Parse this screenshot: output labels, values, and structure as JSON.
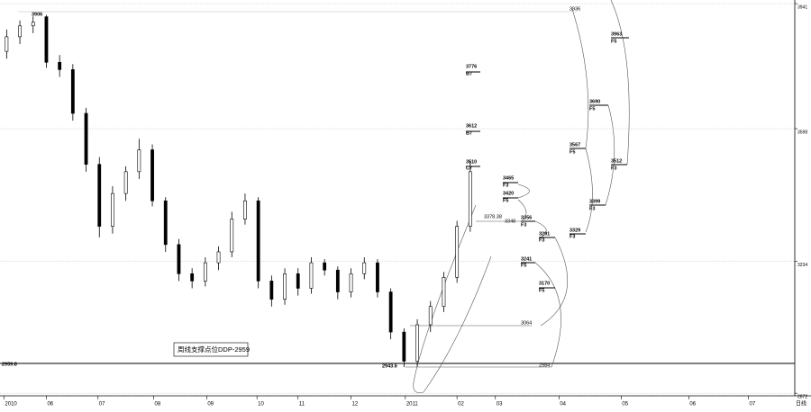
{
  "chart_data": {
    "type": "candlestick",
    "categories": [
      null,
      null,
      null,
      null,
      null,
      null,
      null,
      null,
      null,
      null,
      null,
      null,
      null,
      null,
      null,
      null,
      null,
      null,
      null,
      null,
      null,
      null,
      null,
      null,
      null,
      null,
      null,
      null,
      null,
      null,
      null,
      null,
      null,
      null,
      null,
      null
    ],
    "open": [
      3810,
      3850,
      3880,
      3905,
      3780,
      3760,
      3640,
      3500,
      3330,
      3420,
      3480,
      3540,
      3400,
      3280,
      3200,
      3180,
      3230,
      3260,
      3350,
      3400,
      3180,
      3130,
      3200,
      3160,
      3230,
      3210,
      3150,
      3200,
      3230,
      3150,
      3040,
      2960,
      3060,
      3110,
      3190,
      3330
    ],
    "high": [
      3870,
      3895,
      3906,
      3910,
      3800,
      3775,
      3655,
      3520,
      3440,
      3495,
      3570,
      3555,
      3410,
      3295,
      3215,
      3245,
      3275,
      3370,
      3420,
      3410,
      3195,
      3215,
      3215,
      3245,
      3240,
      3220,
      3215,
      3245,
      3240,
      3160,
      3050,
      3075,
      3125,
      3205,
      3345,
      3510
    ],
    "low": [
      3790,
      3830,
      3860,
      3765,
      3740,
      3620,
      3480,
      3300,
      3310,
      3400,
      3460,
      3385,
      3260,
      3180,
      3160,
      3165,
      3210,
      3245,
      3335,
      3160,
      3110,
      3115,
      3140,
      3145,
      3195,
      3130,
      3135,
      3185,
      3135,
      3020,
      2943.6,
      2945,
      3040,
      3095,
      3175,
      3315
    ],
    "close": [
      3850,
      3880,
      3890,
      3780,
      3760,
      3640,
      3500,
      3330,
      3420,
      3480,
      3540,
      3400,
      3280,
      3200,
      3180,
      3230,
      3260,
      3350,
      3400,
      3180,
      3130,
      3200,
      3160,
      3230,
      3210,
      3150,
      3200,
      3230,
      3150,
      3040,
      2960,
      3060,
      3110,
      3190,
      3330,
      3480
    ],
    "color": "#000000",
    "xlim": [
      -0.5,
      59.5
    ],
    "xticks": [
      {
        "value": -0.2,
        "label": "2010"
      },
      {
        "value": 3.0,
        "label": "06"
      },
      {
        "value": 6.9,
        "label": "07"
      },
      {
        "value": 11.1,
        "label": "08"
      },
      {
        "value": 15.1,
        "label": "09"
      },
      {
        "value": 18.9,
        "label": "10"
      },
      {
        "value": 22.0,
        "label": "11"
      },
      {
        "value": 26.0,
        "label": "12"
      },
      {
        "value": 30.1,
        "label": "2011"
      },
      {
        "value": 34.0,
        "label": "02"
      },
      {
        "value": 36.9,
        "label": "03"
      },
      {
        "value": 41.7,
        "label": "04"
      },
      {
        "value": 46.4,
        "label": "05"
      },
      {
        "value": 51.5,
        "label": "06"
      },
      {
        "value": 56.0,
        "label": "07"
      }
    ],
    "ylim": [
      2865,
      3951
    ],
    "yticks": [
      3941,
      3598,
      3234,
      2872
    ],
    "period_label": "日线",
    "annotations": [
      "3906",
      "3936",
      "3963",
      "F5",
      "3776",
      "B7",
      "3690",
      "F5",
      "3612",
      "B7",
      "3567",
      "F5",
      "3510",
      "C7",
      "3512",
      "F3",
      "3465",
      "F3",
      "3420",
      "F5",
      "3399",
      "F3",
      "3378.38",
      "3356",
      "F3",
      "3348",
      "3329",
      "F3",
      "3291",
      "F3",
      "3241",
      "F5",
      "3170",
      "F5",
      "3064",
      "2984",
      "2943.6",
      "2959.8"
    ],
    "note": "周线支撑点位DDP-2959"
  }
}
